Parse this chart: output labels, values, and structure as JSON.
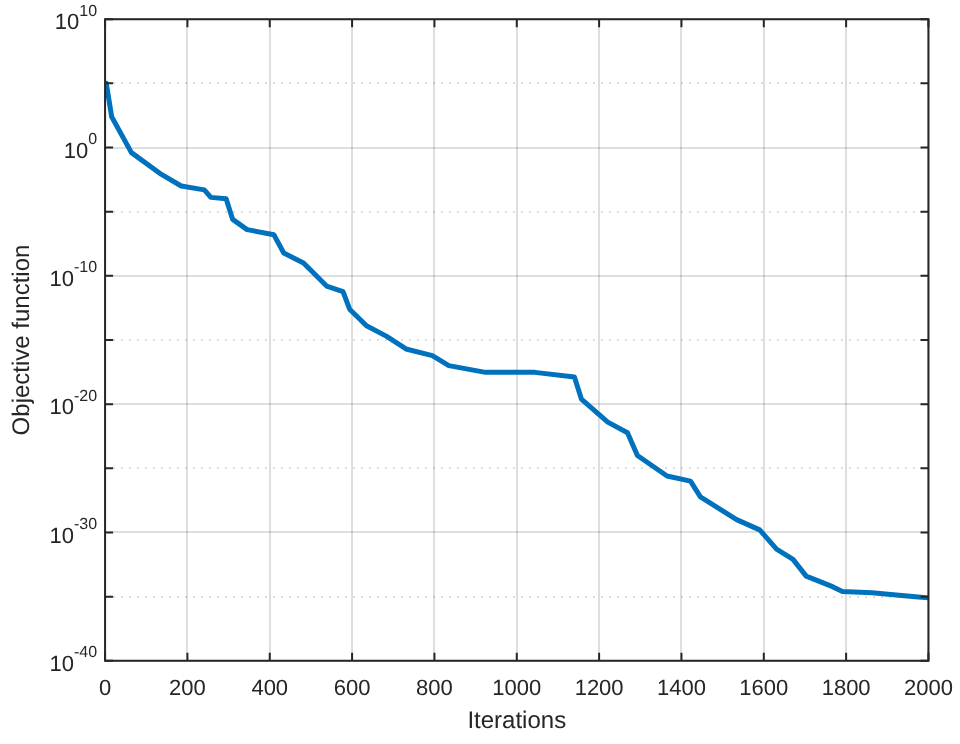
{
  "chart_data": {
    "type": "line",
    "xlabel": "Iterations",
    "ylabel": "Objective function",
    "log": "y",
    "grid": true,
    "legend": false,
    "marker": "none",
    "line_style": "solid",
    "xlim": [
      0,
      2000
    ],
    "xticks": [
      0,
      200,
      400,
      600,
      800,
      1000,
      1200,
      1400,
      1600,
      1800,
      2000
    ],
    "ylim": [
      1e-40,
      10000000000.0
    ],
    "yticks": [
      {
        "value": 1e-40,
        "label": "10$^{-40}$"
      },
      {
        "value": 1e-35,
        "label": null
      },
      {
        "value": 1e-30,
        "label": "10$^{-30}$"
      },
      {
        "value": 1e-25,
        "label": null
      },
      {
        "value": 1e-20,
        "label": "10$^{-20}$"
      },
      {
        "value": 1e-15,
        "label": null
      },
      {
        "value": 1e-10,
        "label": "10$^{-10}$"
      },
      {
        "value": 1e-05,
        "label": null
      },
      {
        "value": 1,
        "label": "10$^{0}$"
      },
      {
        "value": 100000.0,
        "label": null
      },
      {
        "value": 10000000000.0,
        "label": "10$^{10}$"
      }
    ],
    "series": [
      {
        "color": "#0072bd",
        "x": [
          3,
          16,
          64,
          137,
          185,
          241,
          257,
          294,
          310,
          345,
          410,
          434,
          482,
          538,
          578,
          594,
          635,
          683,
          731,
          795,
          835,
          924,
          1044,
          1140,
          1157,
          1221,
          1269,
          1293,
          1365,
          1422,
          1446,
          1534,
          1590,
          1631,
          1671,
          1703,
          1767,
          1791,
          1863,
          1968,
          2000
        ],
        "values": [
          100000.0,
          250.0,
          0.4,
          0.008,
          0.001,
          0.0005,
          0.00013,
          0.0001,
          2.5e-06,
          4e-07,
          1.6e-07,
          6e-09,
          1e-09,
          1.6e-11,
          6e-12,
          2.5e-13,
          1.3e-14,
          2e-15,
          2e-16,
          6e-17,
          1e-17,
          3e-18,
          3e-18,
          1.3e-18,
          2.5e-20,
          4e-22,
          6e-23,
          1e-24,
          2.5e-26,
          1e-26,
          6e-28,
          1e-29,
          1.6e-30,
          5e-32,
          8e-33,
          4e-34,
          6e-35,
          2.5e-35,
          2e-35,
          1e-35,
          8e-36
        ]
      }
    ]
  }
}
